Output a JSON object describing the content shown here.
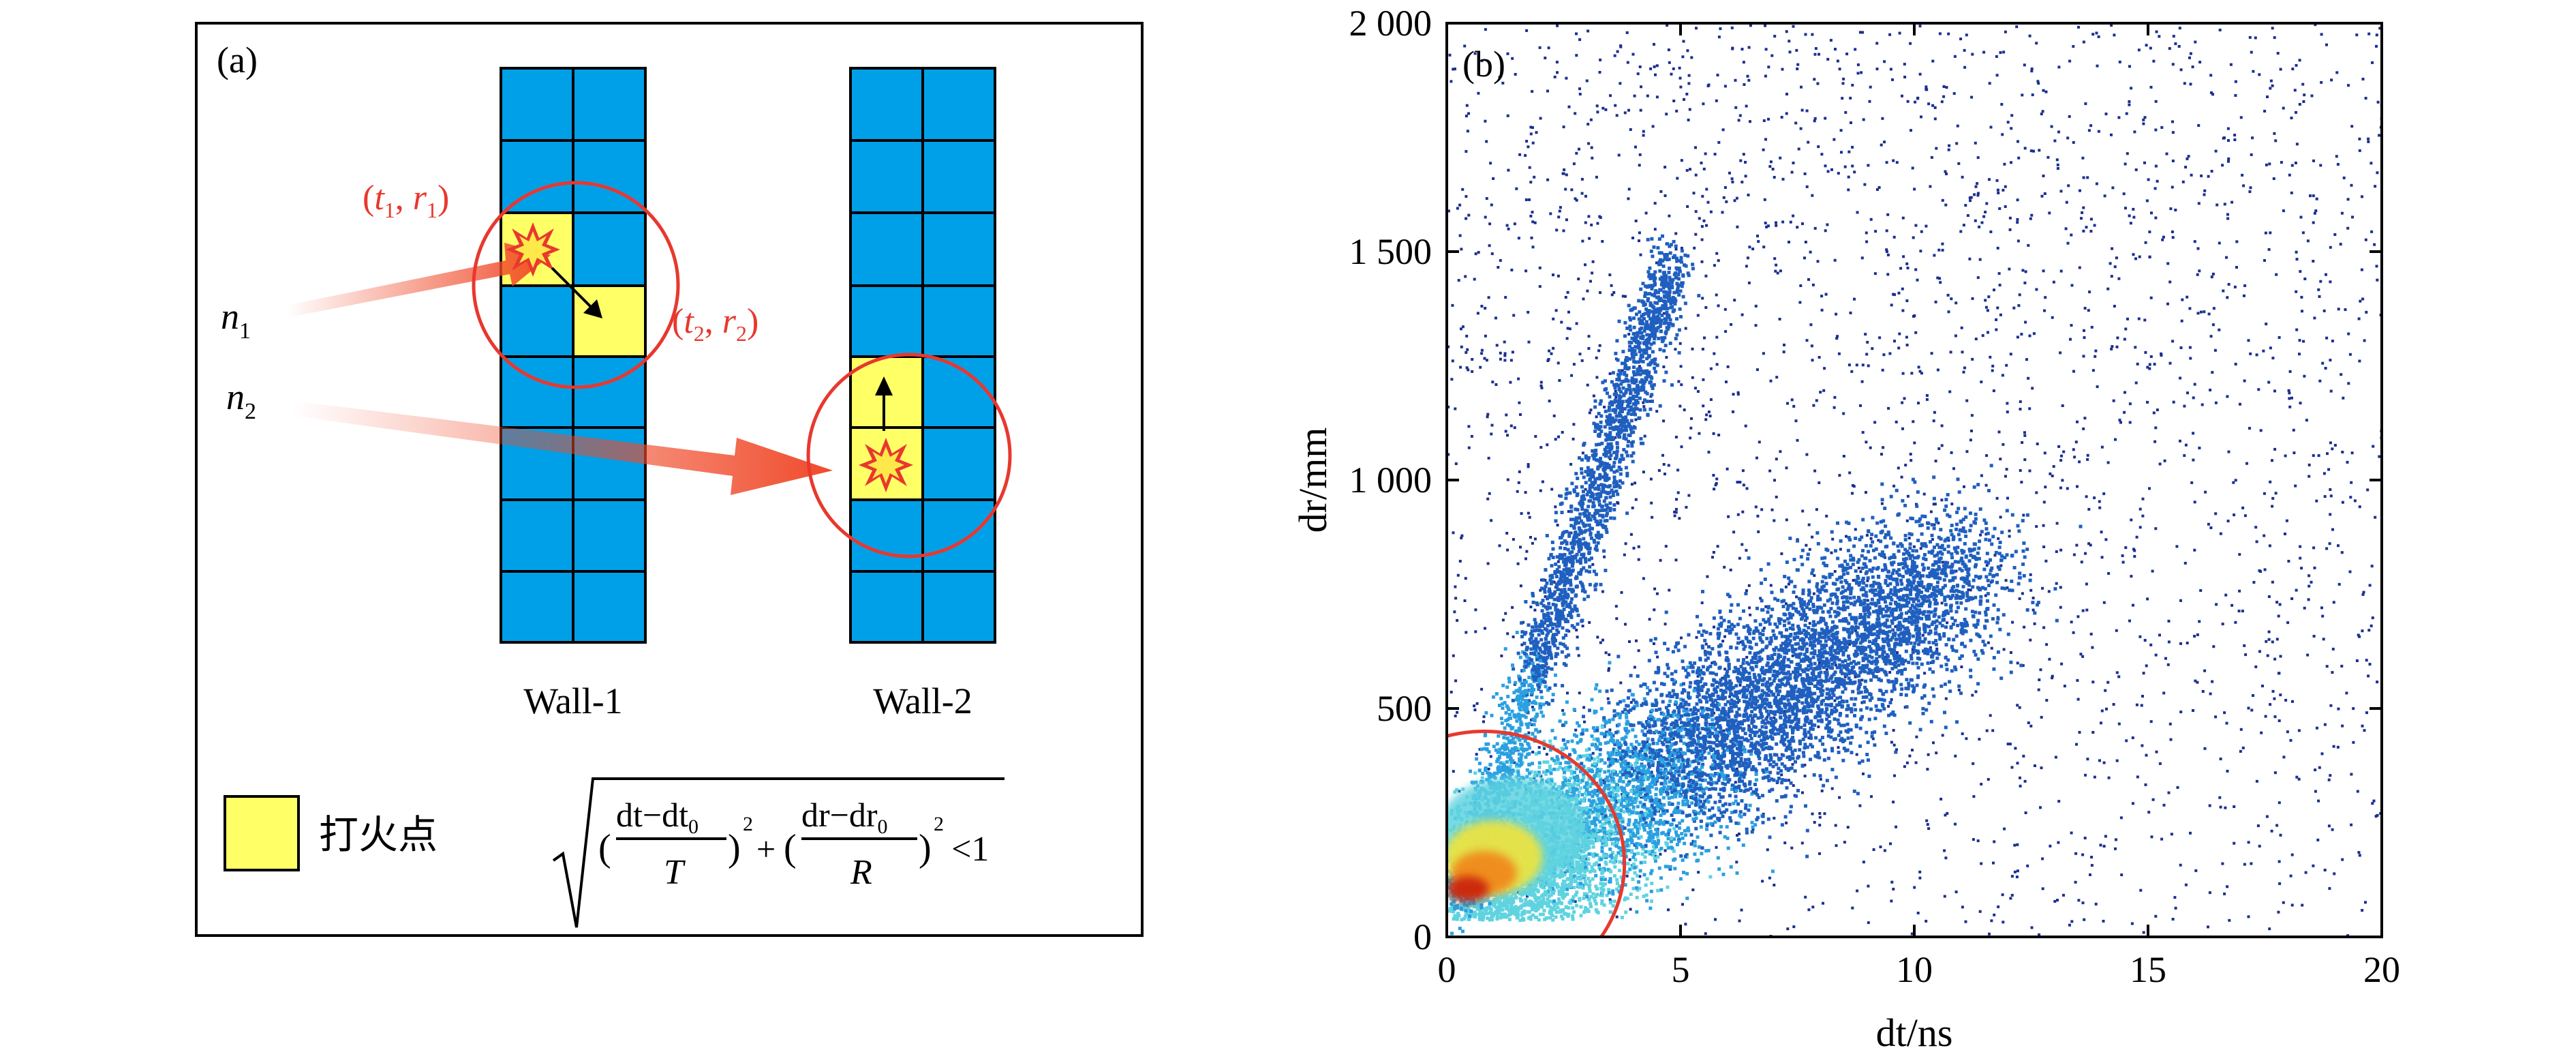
{
  "panel_a": {
    "label": "(a)",
    "hit1_label": {
      "pre": "(",
      "t": "t",
      "sub1": "1",
      "mid": ", ",
      "r": "r",
      "sub2": "1",
      "post": ")"
    },
    "hit2_label": {
      "pre": "(",
      "t": "t",
      "sub1": "2",
      "mid": ", ",
      "r": "r",
      "sub2": "2",
      "post": ")"
    },
    "n1": {
      "base": "n",
      "sub": "1"
    },
    "n2": {
      "base": "n",
      "sub": "2"
    },
    "wall1_label": "Wall-1",
    "wall2_label": "Wall-2",
    "legend_label": "打火点",
    "formula": {
      "num1": "dt−dt",
      "num1_sub": "0",
      "den1": "T",
      "num2": "dr−dr",
      "num2_sub": "0",
      "den2": "R",
      "exp": "2",
      "plus": "+",
      "lt": "<1",
      "lparen": "(",
      "rparen": ")"
    },
    "colors": {
      "cell": "#00A0E9",
      "hit": "#FFFF66",
      "circle": "#E8382E",
      "arrow": "#F04A2A"
    }
  },
  "chart_data": {
    "type": "scatter",
    "panel_label": "(b)",
    "xlabel": {
      "base": "dt",
      "unit": "/ns"
    },
    "ylabel": {
      "base": "dr",
      "unit": "/mm"
    },
    "xlim": [
      0,
      20
    ],
    "ylim": [
      0,
      2000
    ],
    "x_ticks": [
      0,
      5,
      10,
      15,
      20
    ],
    "x_tick_labels": [
      "0",
      "5",
      "10",
      "15",
      "20"
    ],
    "y_ticks": [
      0,
      500,
      1000,
      1500,
      2000
    ],
    "y_tick_labels": [
      "0",
      "500",
      "1 000",
      "1 500",
      "2 000"
    ],
    "grid": false,
    "density_colormap": [
      "#1a2f8f",
      "#1f5fbf",
      "#2aa0e0",
      "#5fd3e0",
      "#f2e43a",
      "#f08a1a",
      "#cc2a10"
    ],
    "clusters": [
      {
        "name": "main",
        "x_from": 0.3,
        "x_to": 11.0,
        "y_from": 60,
        "y_to": 820,
        "peak_x": 1.0,
        "peak_y": 150
      },
      {
        "name": "diagonal",
        "x_from": 0.2,
        "x_to": 4.8,
        "y_from": 80,
        "y_to": 1480
      },
      {
        "name": "background",
        "x_from": 0,
        "x_to": 20,
        "y_from": 0,
        "y_to": 2000
      }
    ],
    "selection_ellipse": {
      "cx": 0.8,
      "cy": 160,
      "rx": 3.0,
      "ry": 290,
      "color": "#E8382E"
    }
  }
}
